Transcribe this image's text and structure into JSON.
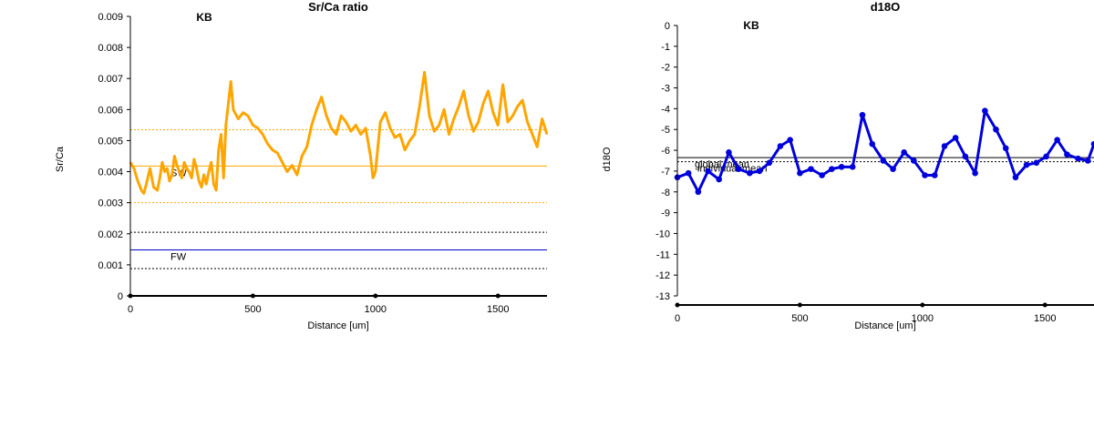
{
  "chart_data": [
    {
      "type": "line",
      "title": "Sr/Ca ratio",
      "annotation_tag": "KB",
      "xlabel": "Distance [um]",
      "ylabel": "Sr/Ca",
      "xlim": [
        0,
        1700
      ],
      "ylim": [
        0,
        0.009
      ],
      "xticks": [
        "0",
        "500",
        "1000",
        "1500"
      ],
      "xtick_values": [
        0,
        500,
        1000,
        1500
      ],
      "yticks": [
        "0",
        "0.001",
        "0.002",
        "0.003",
        "0.004",
        "0.005",
        "0.006",
        "0.007",
        "0.008",
        "0.009"
      ],
      "ytick_values": [
        0,
        0.001,
        0.002,
        0.003,
        0.004,
        0.005,
        0.006,
        0.007,
        0.008,
        0.009
      ],
      "grid": false,
      "series": [
        {
          "color": "#FFA500",
          "x": [
            0,
            15,
            30,
            45,
            55,
            65,
            80,
            95,
            110,
            120,
            130,
            140,
            150,
            160,
            170,
            180,
            190,
            200,
            210,
            220,
            230,
            240,
            250,
            260,
            270,
            280,
            290,
            300,
            310,
            320,
            330,
            340,
            350,
            360,
            370,
            380,
            390,
            400,
            410,
            420,
            440,
            460,
            480,
            500,
            520,
            540,
            560,
            580,
            600,
            620,
            640,
            660,
            680,
            700,
            720,
            740,
            760,
            780,
            800,
            820,
            840,
            860,
            880,
            900,
            920,
            940,
            960,
            980,
            990,
            1000,
            1020,
            1040,
            1060,
            1080,
            1100,
            1120,
            1140,
            1160,
            1180,
            1200,
            1220,
            1240,
            1260,
            1280,
            1300,
            1320,
            1340,
            1360,
            1380,
            1400,
            1420,
            1440,
            1460,
            1480,
            1500,
            1520,
            1540,
            1560,
            1580,
            1600,
            1620,
            1640,
            1660,
            1680,
            1700
          ],
          "values": [
            0.0043,
            0.0041,
            0.0037,
            0.0034,
            0.0033,
            0.0036,
            0.0041,
            0.0035,
            0.0034,
            0.0038,
            0.0043,
            0.004,
            0.0041,
            0.0037,
            0.0039,
            0.0045,
            0.0042,
            0.004,
            0.0038,
            0.0043,
            0.0041,
            0.004,
            0.0038,
            0.0044,
            0.0041,
            0.0037,
            0.0035,
            0.0039,
            0.0036,
            0.004,
            0.0043,
            0.0036,
            0.0034,
            0.0047,
            0.0052,
            0.0038,
            0.0055,
            0.0062,
            0.0069,
            0.006,
            0.0057,
            0.0059,
            0.0058,
            0.0055,
            0.0054,
            0.0052,
            0.0049,
            0.0047,
            0.0046,
            0.0043,
            0.004,
            0.0042,
            0.0039,
            0.0045,
            0.0048,
            0.0055,
            0.006,
            0.0064,
            0.0058,
            0.0054,
            0.0052,
            0.0058,
            0.0056,
            0.0053,
            0.0055,
            0.0052,
            0.0054,
            0.0045,
            0.0038,
            0.004,
            0.0056,
            0.0059,
            0.0054,
            0.0051,
            0.0052,
            0.0047,
            0.005,
            0.0052,
            0.0061,
            0.0072,
            0.0058,
            0.0053,
            0.0055,
            0.006,
            0.0052,
            0.0057,
            0.0061,
            0.0066,
            0.0058,
            0.0053,
            0.0056,
            0.0062,
            0.0066,
            0.0059,
            0.0055,
            0.0068,
            0.0056,
            0.0058,
            0.0061,
            0.0063,
            0.0056,
            0.0052,
            0.0048,
            0.0057,
            0.0052
          ]
        }
      ],
      "reference_lines": [
        {
          "value": 0.00535,
          "color": "#FFA500",
          "style": "dotted",
          "label": ""
        },
        {
          "value": 0.00418,
          "color": "#FFA500",
          "style": "solid",
          "label": "SW"
        },
        {
          "value": 0.003,
          "color": "#FFA500",
          "style": "dotted",
          "label": ""
        },
        {
          "value": 0.00205,
          "color": "#000000",
          "style": "dotted",
          "label": ""
        },
        {
          "value": 0.00148,
          "color": "#0000CC",
          "style": "solid",
          "label": "FW"
        },
        {
          "value": 0.00088,
          "color": "#000000",
          "style": "dotted",
          "label": ""
        }
      ]
    },
    {
      "type": "line",
      "title": "d18O",
      "annotation_tag": "KB",
      "xlabel": "Distance [um]",
      "ylabel": "d18O",
      "xlim": [
        0,
        1700
      ],
      "ylim": [
        -13,
        0
      ],
      "xticks": [
        "0",
        "500",
        "1000",
        "1500"
      ],
      "xtick_values": [
        0,
        500,
        1000,
        1500
      ],
      "yticks": [
        "0",
        "-1",
        "-2",
        "-3",
        "-4",
        "-5",
        "-6",
        "-7",
        "-8",
        "-9",
        "-10",
        "-11",
        "-12",
        "-13"
      ],
      "ytick_values": [
        0,
        -1,
        -2,
        -3,
        -4,
        -5,
        -6,
        -7,
        -8,
        -9,
        -10,
        -11,
        -12,
        -13
      ],
      "grid": false,
      "series": [
        {
          "color": "#0000DD",
          "x": [
            0,
            45,
            85,
            125,
            170,
            210,
            250,
            295,
            335,
            375,
            420,
            460,
            500,
            545,
            590,
            630,
            670,
            715,
            755,
            795,
            840,
            880,
            925,
            965,
            1010,
            1050,
            1090,
            1135,
            1175,
            1215,
            1255,
            1300,
            1340,
            1380,
            1425,
            1465,
            1505,
            1550,
            1590,
            1635,
            1675,
            1700
          ],
          "values": [
            -7.3,
            -7.1,
            -8.0,
            -7.0,
            -7.4,
            -6.1,
            -6.9,
            -7.1,
            -7.0,
            -6.6,
            -5.8,
            -5.5,
            -7.1,
            -6.9,
            -7.2,
            -6.9,
            -6.8,
            -6.8,
            -4.3,
            -5.7,
            -6.5,
            -6.9,
            -6.1,
            -6.5,
            -7.2,
            -7.2,
            -5.8,
            -5.4,
            -6.3,
            -7.1,
            -4.1,
            -5.0,
            -5.9,
            -7.3,
            -6.7,
            -6.6,
            -6.3,
            -5.5,
            -6.2,
            -6.4,
            -6.5,
            -5.7
          ]
        }
      ],
      "reference_lines": [
        {
          "value": -6.35,
          "color": "#000000",
          "style": "solid",
          "label": "global mean"
        },
        {
          "value": -6.55,
          "color": "#000000",
          "style": "dotted",
          "label": "individual mean"
        }
      ]
    }
  ]
}
